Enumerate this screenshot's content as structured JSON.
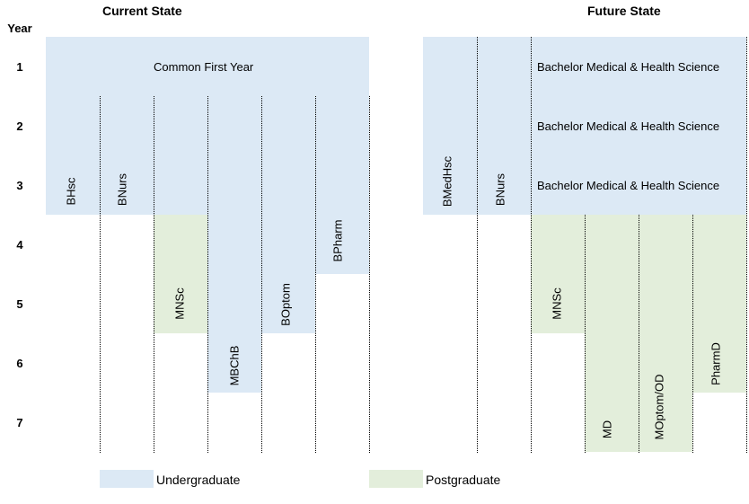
{
  "headers": {
    "current_state": "Current State",
    "future_state": "Future State",
    "year": "Year"
  },
  "years": [
    "1",
    "2",
    "3",
    "4",
    "5",
    "6",
    "7"
  ],
  "current": {
    "common_first_year": "Common First Year",
    "programs": [
      "BHsc",
      "BNurs",
      "MNSc",
      "MBChB",
      "BOptom",
      "BPharm"
    ]
  },
  "future": {
    "bmhs_rows": [
      "Bachelor Medical & Health Science",
      "Bachelor Medical & Health Science",
      "Bachelor Medical & Health Science"
    ],
    "programs": [
      "BMedHsc",
      "BNurs",
      "MNSc",
      "MD",
      "MOptom/OD",
      "PharmD"
    ]
  },
  "legend": {
    "undergraduate": "Undergraduate",
    "postgraduate": "Postgraduate",
    "colors": {
      "undergraduate": "#dce9f5",
      "postgraduate": "#e3eedb"
    }
  }
}
